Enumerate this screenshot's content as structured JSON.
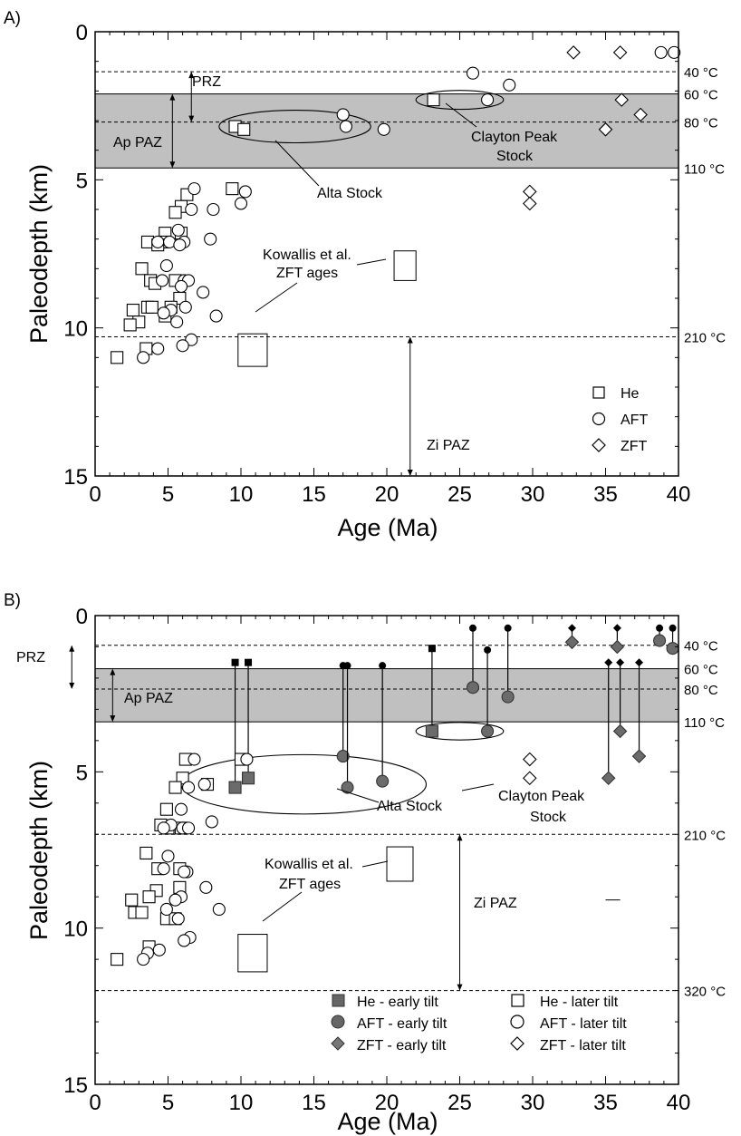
{
  "chart_data": [
    {
      "panel_label": "A)",
      "type": "scatter",
      "xlabel": "Age (Ma)",
      "ylabel": "Paleodepth (km)",
      "xlim": [
        0,
        40
      ],
      "ylim": [
        15,
        0
      ],
      "x_ticks": [
        "0",
        "5",
        "10",
        "15",
        "20",
        "25",
        "30",
        "35",
        "40"
      ],
      "y_ticks": [
        "0",
        "5",
        "10",
        "15"
      ],
      "grid": false,
      "legend_position": "bottom-right",
      "legend": [
        {
          "marker": "square",
          "label": "He"
        },
        {
          "marker": "circle",
          "label": "AFT"
        },
        {
          "marker": "diamond",
          "label": "ZFT"
        }
      ],
      "shaded_zone": {
        "label": "Ap PAZ",
        "from": 2.1,
        "to": 4.6,
        "color": "#c0c0c0"
      },
      "isotherms": [
        {
          "depth": 1.35,
          "label": "40 °C"
        },
        {
          "depth": 2.1,
          "label": "60 °C"
        },
        {
          "depth": 3.05,
          "label": "80 °C"
        },
        {
          "depth": 4.6,
          "label": "110 °C"
        },
        {
          "depth": 10.3,
          "label": "210 °C"
        }
      ],
      "ranges": [
        {
          "label": "PRZ",
          "x": 6.6,
          "from": 1.35,
          "to": 3.05
        },
        {
          "label": "Ap PAZ",
          "x": 5.3,
          "from": 2.1,
          "to": 4.6
        },
        {
          "label": "Zi PAZ",
          "x": 21.6,
          "from": 10.3,
          "to": 15
        }
      ],
      "groups": [
        {
          "label": "Alta Stock",
          "center": [
            13.7,
            3.2
          ],
          "rx": 5.2,
          "ry": 0.55
        },
        {
          "label": "Clayton Peak Stock",
          "center": [
            25,
            2.3
          ],
          "rx": 3,
          "ry": 0.32
        }
      ],
      "kowallis_label": "Kowallis et al. ZFT ages",
      "kowallis_boxes": [
        {
          "x": [
            20.5,
            22.0
          ],
          "y": [
            7.4,
            8.4
          ]
        },
        {
          "x": [
            9.8,
            11.8
          ],
          "y": [
            10.2,
            11.3
          ]
        }
      ],
      "series": [
        {
          "name": "He",
          "marker": "square",
          "points": [
            [
              9.6,
              3.2
            ],
            [
              10.2,
              3.3
            ],
            [
              23.2,
              2.3
            ],
            [
              9.4,
              5.3
            ],
            [
              6.3,
              5.5
            ],
            [
              5.9,
              5.9
            ],
            [
              5.5,
              6.1
            ],
            [
              4.8,
              6.8
            ],
            [
              5.9,
              6.8
            ],
            [
              3.6,
              7.1
            ],
            [
              4.7,
              7.1
            ],
            [
              4.3,
              7.2
            ],
            [
              3.2,
              8.0
            ],
            [
              3.8,
              8.4
            ],
            [
              4.1,
              8.5
            ],
            [
              5.5,
              8.4
            ],
            [
              5.8,
              9.0
            ],
            [
              2.6,
              9.4
            ],
            [
              3.6,
              9.3
            ],
            [
              3.9,
              9.3
            ],
            [
              5.2,
              9.3
            ],
            [
              3.0,
              9.8
            ],
            [
              2.4,
              9.9
            ],
            [
              4.8,
              9.6
            ],
            [
              3.5,
              10.7
            ],
            [
              1.5,
              11.0
            ]
          ]
        },
        {
          "name": "AFT",
          "marker": "circle",
          "points": [
            [
              17.0,
              2.8
            ],
            [
              17.2,
              3.2
            ],
            [
              19.8,
              3.3
            ],
            [
              25.9,
              1.4
            ],
            [
              26.9,
              2.3
            ],
            [
              28.4,
              1.8
            ],
            [
              38.8,
              0.7
            ],
            [
              39.7,
              0.7
            ],
            [
              6.8,
              5.3
            ],
            [
              10.3,
              5.4
            ],
            [
              10.0,
              5.8
            ],
            [
              6.6,
              6.0
            ],
            [
              8.1,
              6.0
            ],
            [
              5.7,
              6.7
            ],
            [
              4.3,
              7.1
            ],
            [
              5.1,
              7.1
            ],
            [
              6.1,
              7.1
            ],
            [
              5.8,
              7.2
            ],
            [
              7.9,
              7.0
            ],
            [
              4.9,
              7.9
            ],
            [
              4.6,
              8.4
            ],
            [
              6.1,
              8.4
            ],
            [
              6.4,
              8.4
            ],
            [
              5.9,
              8.6
            ],
            [
              7.4,
              8.8
            ],
            [
              6.2,
              9.3
            ],
            [
              5.2,
              9.4
            ],
            [
              4.7,
              9.5
            ],
            [
              8.3,
              9.6
            ],
            [
              5.6,
              9.8
            ],
            [
              6.6,
              10.4
            ],
            [
              4.3,
              10.7
            ],
            [
              6.0,
              10.6
            ],
            [
              3.3,
              11.0
            ]
          ]
        },
        {
          "name": "ZFT",
          "marker": "diamond",
          "points": [
            [
              32.8,
              0.7
            ],
            [
              36.0,
              0.7
            ],
            [
              36.1,
              2.3
            ],
            [
              37.4,
              2.8
            ],
            [
              35.0,
              3.3
            ],
            [
              29.8,
              5.4
            ],
            [
              29.8,
              5.8
            ]
          ]
        }
      ]
    },
    {
      "panel_label": "B)",
      "type": "scatter",
      "xlabel": "Age (Ma)",
      "ylabel": "Paleodepth (km)",
      "xlim": [
        0,
        40
      ],
      "ylim": [
        15,
        0
      ],
      "x_ticks": [
        "0",
        "5",
        "10",
        "15",
        "20",
        "25",
        "30",
        "35",
        "40"
      ],
      "y_ticks": [
        "0",
        "5",
        "10",
        "15"
      ],
      "grid": false,
      "legend_position": "bottom",
      "legend": [
        {
          "marker": "square",
          "filled": true,
          "label": "He - early tilt"
        },
        {
          "marker": "circle",
          "filled": true,
          "label": "AFT - early tilt"
        },
        {
          "marker": "diamond",
          "filled": true,
          "label": "ZFT - early tilt"
        },
        {
          "marker": "square",
          "filled": false,
          "label": "He - later tilt"
        },
        {
          "marker": "circle",
          "filled": false,
          "label": "AFT - later tilt"
        },
        {
          "marker": "diamond",
          "filled": false,
          "label": "ZFT - later tilt"
        }
      ],
      "shaded_zone": {
        "label": "Ap PAZ",
        "from": 1.7,
        "to": 3.4,
        "color": "#c0c0c0"
      },
      "isotherms": [
        {
          "depth": 0.95,
          "label": "40 °C"
        },
        {
          "depth": 1.7,
          "label": "60 °C"
        },
        {
          "depth": 2.35,
          "label": "80 °C"
        },
        {
          "depth": 3.4,
          "label": "110 °C"
        },
        {
          "depth": 7.0,
          "label": "210 °C"
        },
        {
          "depth": 12.0,
          "label": "320 °C"
        }
      ],
      "ranges": [
        {
          "label": "PRZ",
          "x": -1.6,
          "from": 0.95,
          "to": 2.35
        },
        {
          "label": "Ap PAZ",
          "x": 1.2,
          "from": 1.7,
          "to": 3.4
        },
        {
          "label": "Zi PAZ",
          "x": 25.0,
          "from": 7.0,
          "to": 12.0
        }
      ],
      "groups": [
        {
          "label": "Alta Stock",
          "center": [
            14.3,
            5.4
          ],
          "rx": 8.4,
          "ry": 0.95
        },
        {
          "label": "Clayton Peak Stock",
          "center": [
            25,
            3.7
          ],
          "rx": 3,
          "ry": 0.28
        }
      ],
      "kowallis_label": "Kowallis et al. ZFT ages",
      "kowallis_boxes": [
        {
          "x": [
            20.0,
            21.8
          ],
          "y": [
            7.4,
            8.5
          ]
        },
        {
          "x": [
            9.8,
            11.8
          ],
          "y": [
            10.2,
            11.4
          ]
        }
      ],
      "stray_mark": {
        "x": [
          35.0,
          36.0
        ],
        "y": 9.1
      },
      "tilt_paths": [
        {
          "marker": "square",
          "x": 9.6,
          "from": 1.5,
          "to": 5.5
        },
        {
          "marker": "square",
          "x": 10.5,
          "from": 1.5,
          "to": 5.2
        },
        {
          "marker": "circle",
          "x": 17.0,
          "from": 1.6,
          "to": 4.5
        },
        {
          "marker": "circle",
          "x": 17.3,
          "from": 1.6,
          "to": 5.5
        },
        {
          "marker": "circle",
          "x": 19.7,
          "from": 1.6,
          "to": 5.3
        },
        {
          "marker": "square",
          "x": 23.1,
          "from": 1.05,
          "to": 3.7
        },
        {
          "marker": "circle",
          "x": 25.9,
          "from": 0.4,
          "to": 2.3
        },
        {
          "marker": "circle",
          "x": 26.9,
          "from": 1.1,
          "to": 3.7
        },
        {
          "marker": "circle",
          "x": 28.3,
          "from": 0.4,
          "to": 2.6
        },
        {
          "marker": "diamond",
          "x": 32.7,
          "from": 0.4,
          "to": 0.85
        },
        {
          "marker": "diamond",
          "x": 35.2,
          "from": 1.5,
          "to": 5.2
        },
        {
          "marker": "diamond",
          "x": 35.8,
          "from": 0.4,
          "to": 1.0
        },
        {
          "marker": "diamond",
          "x": 36.0,
          "from": 1.5,
          "to": 3.7
        },
        {
          "marker": "diamond",
          "x": 37.3,
          "from": 1.5,
          "to": 4.5
        },
        {
          "marker": "circle",
          "x": 38.7,
          "from": 0.4,
          "to": 0.8
        },
        {
          "marker": "circle",
          "x": 39.6,
          "from": 0.4,
          "to": 1.05
        }
      ],
      "series": [
        {
          "name": "He - later tilt",
          "marker": "square",
          "points": [
            [
              6.2,
              4.6
            ],
            [
              10.0,
              4.6
            ],
            [
              6.0,
              5.2
            ],
            [
              5.5,
              5.5
            ],
            [
              7.7,
              5.4
            ],
            [
              4.9,
              6.2
            ],
            [
              4.5,
              6.7
            ],
            [
              5.0,
              6.8
            ],
            [
              5.9,
              6.8
            ],
            [
              3.5,
              7.6
            ],
            [
              4.3,
              8.1
            ],
            [
              5.8,
              8.1
            ],
            [
              5.8,
              8.7
            ],
            [
              4.2,
              8.8
            ],
            [
              3.7,
              9.0
            ],
            [
              2.5,
              9.1
            ],
            [
              2.7,
              9.5
            ],
            [
              3.2,
              9.5
            ],
            [
              4.9,
              9.7
            ],
            [
              5.5,
              9.7
            ],
            [
              3.7,
              10.6
            ],
            [
              1.5,
              11.0
            ]
          ]
        },
        {
          "name": "AFT - later tilt",
          "marker": "circle",
          "points": [
            [
              6.8,
              4.6
            ],
            [
              10.4,
              4.6
            ],
            [
              6.4,
              5.5
            ],
            [
              7.5,
              5.4
            ],
            [
              5.9,
              6.2
            ],
            [
              5.2,
              6.7
            ],
            [
              8.0,
              6.6
            ],
            [
              4.7,
              6.8
            ],
            [
              6.0,
              6.8
            ],
            [
              6.4,
              6.8
            ],
            [
              5.0,
              7.7
            ],
            [
              4.7,
              8.1
            ],
            [
              6.3,
              8.2
            ],
            [
              6.1,
              8.2
            ],
            [
              7.6,
              8.7
            ],
            [
              5.9,
              9.0
            ],
            [
              5.5,
              9.1
            ],
            [
              4.9,
              9.4
            ],
            [
              8.5,
              9.4
            ],
            [
              5.7,
              9.7
            ],
            [
              6.5,
              10.3
            ],
            [
              6.1,
              10.4
            ],
            [
              4.4,
              10.7
            ],
            [
              3.6,
              10.8
            ],
            [
              3.3,
              11.0
            ]
          ]
        },
        {
          "name": "ZFT - later tilt",
          "marker": "diamond",
          "points": [
            [
              29.8,
              4.6
            ],
            [
              29.8,
              5.2
            ]
          ]
        }
      ]
    }
  ],
  "ann": {
    "a_panel": "A)",
    "b_panel": "B)",
    "prz": "PRZ",
    "ap_paz": "Ap PAZ",
    "zi_paz": "Zi  PAZ",
    "alta": "Alta Stock",
    "clayton_1": "Clayton Peak",
    "clayton_2": "Stock",
    "kow_1": "Kowallis et al.",
    "kow_2": "ZFT ages",
    "xlabel": "Age (Ma)",
    "ylabel": "Paleodepth (km)",
    "leg_a": [
      "He",
      "AFT",
      "ZFT"
    ],
    "leg_b": [
      "He - early tilt",
      "AFT - early tilt",
      "ZFT - early tilt",
      "He - later tilt",
      "AFT - later tilt",
      "ZFT - later tilt"
    ]
  }
}
